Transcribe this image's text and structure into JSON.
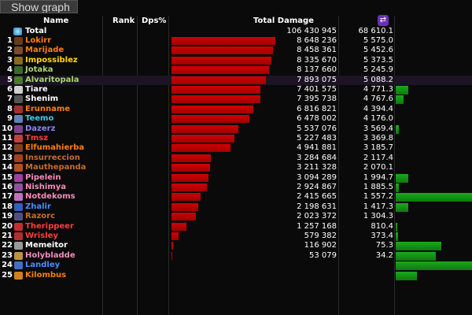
{
  "show_graph_label": "Show graph",
  "header": {
    "name": "Name",
    "rank": "Rank",
    "dps_pct": "Dps%",
    "total_damage": "Total Damage",
    "swap_icon": "swap-icon"
  },
  "total": {
    "label": "Total",
    "damage": "106 430 945",
    "dps": "68 610.1"
  },
  "rows": [
    {
      "rank": "1",
      "name": "Lokirr",
      "color": "#ff7d0a",
      "damage": "8 648 236",
      "dps": "5 575.0",
      "damage_value": 8648236,
      "graph_fraction": 0
    },
    {
      "rank": "2",
      "name": "Marijade",
      "color": "#ff7d0a",
      "damage": "8 458 361",
      "dps": "5 452.6",
      "damage_value": 8458361,
      "graph_fraction": 0
    },
    {
      "rank": "3",
      "name": "Impossiblez",
      "color": "#ffd700",
      "damage": "8 335 670",
      "dps": "5 373.5",
      "damage_value": 8335670,
      "graph_fraction": 0
    },
    {
      "rank": "4",
      "name": "Jotaka",
      "color": "#abd473",
      "damage": "8 137 660",
      "dps": "5 245.9",
      "damage_value": 8137660,
      "graph_fraction": 0
    },
    {
      "rank": "5",
      "name": "Alvaritopala",
      "color": "#abd473",
      "damage": "7 893 075",
      "dps": "5 088.2",
      "damage_value": 7893075,
      "graph_fraction": 0
    },
    {
      "rank": "6",
      "name": "Tiare",
      "color": "#ffffff",
      "damage": "7 401 575",
      "dps": "4 771.3",
      "damage_value": 7401575,
      "graph_fraction": 0.16
    },
    {
      "rank": "7",
      "name": "Shenim",
      "color": "#ffffff",
      "damage": "7 395 738",
      "dps": "4 767.6",
      "damage_value": 7395738,
      "graph_fraction": 0.1
    },
    {
      "rank": "8",
      "name": "Erunname",
      "color": "#ff7d0a",
      "damage": "6 816 821",
      "dps": "4 394.4",
      "damage_value": 6816821,
      "graph_fraction": 0
    },
    {
      "rank": "9",
      "name": "Teemo",
      "color": "#40c7eb",
      "damage": "6 478 002",
      "dps": "4 176.0",
      "damage_value": 6478002,
      "graph_fraction": 0
    },
    {
      "rank": "10",
      "name": "Dazerz",
      "color": "#8787ed",
      "damage": "5 537 076",
      "dps": "3 569.4",
      "damage_value": 5537076,
      "graph_fraction": 0.04
    },
    {
      "rank": "11",
      "name": "Tmsz",
      "color": "#ff3b3b",
      "damage": "5 227 483",
      "dps": "3 369.8",
      "damage_value": 5227483,
      "graph_fraction": 0
    },
    {
      "rank": "12",
      "name": "Elfumahierba",
      "color": "#ff7d0a",
      "damage": "4 941 881",
      "dps": "3 185.7",
      "damage_value": 4941881,
      "graph_fraction": 0
    },
    {
      "rank": "13",
      "name": "Insurreccion",
      "color": "#c76b2a",
      "damage": "3 284 684",
      "dps": "2 117.4",
      "damage_value": 3284684,
      "graph_fraction": 0
    },
    {
      "rank": "14",
      "name": "Mauthepanda",
      "color": "#c76b2a",
      "damage": "3 211 328",
      "dps": "2 070.1",
      "damage_value": 3211328,
      "graph_fraction": 0
    },
    {
      "rank": "15",
      "name": "Pipelein",
      "color": "#f58cba",
      "damage": "3 094 289",
      "dps": "1 994.7",
      "damage_value": 3094289,
      "graph_fraction": 0.17
    },
    {
      "rank": "16",
      "name": "Nishimya",
      "color": "#f58cba",
      "damage": "2 924 867",
      "dps": "1 885.5",
      "damage_value": 2924867,
      "graph_fraction": 0.04
    },
    {
      "rank": "17",
      "name": "Notdekoms",
      "color": "#f58cba",
      "damage": "2 415 665",
      "dps": "1 557.2",
      "damage_value": 2415665,
      "graph_fraction": 1.0
    },
    {
      "rank": "18",
      "name": "Zhalir",
      "color": "#4a8cff",
      "damage": "2 198 631",
      "dps": "1 417.3",
      "damage_value": 2198631,
      "graph_fraction": 0.16
    },
    {
      "rank": "19",
      "name": "Razorc",
      "color": "#c76b2a",
      "damage": "2 023 372",
      "dps": "1 304.3",
      "damage_value": 2023372,
      "graph_fraction": 0
    },
    {
      "rank": "20",
      "name": "Therippeer",
      "color": "#ff3b3b",
      "damage": "1 257 168",
      "dps": "810.4",
      "damage_value": 1257168,
      "graph_fraction": 0.02
    },
    {
      "rank": "21",
      "name": "Wrisley",
      "color": "#ff3b3b",
      "damage": "579 382",
      "dps": "373.4",
      "damage_value": 579382,
      "graph_fraction": 0.03
    },
    {
      "rank": "22",
      "name": "Memeitor",
      "color": "#ffffff",
      "damage": "116 902",
      "dps": "75.3",
      "damage_value": 116902,
      "graph_fraction": 0.6
    },
    {
      "rank": "23",
      "name": "Holybladde",
      "color": "#f58cba",
      "damage": "53 079",
      "dps": "34.2",
      "damage_value": 53079,
      "graph_fraction": 0.53
    },
    {
      "rank": "24",
      "name": "Landley",
      "color": "#4a8cff",
      "damage": "",
      "dps": "",
      "damage_value": 0,
      "graph_fraction": 1.0
    },
    {
      "rank": "25",
      "name": "Kilombus",
      "color": "#ff7d0a",
      "damage": "",
      "dps": "",
      "damage_value": 0,
      "graph_fraction": 0.28
    }
  ]
}
